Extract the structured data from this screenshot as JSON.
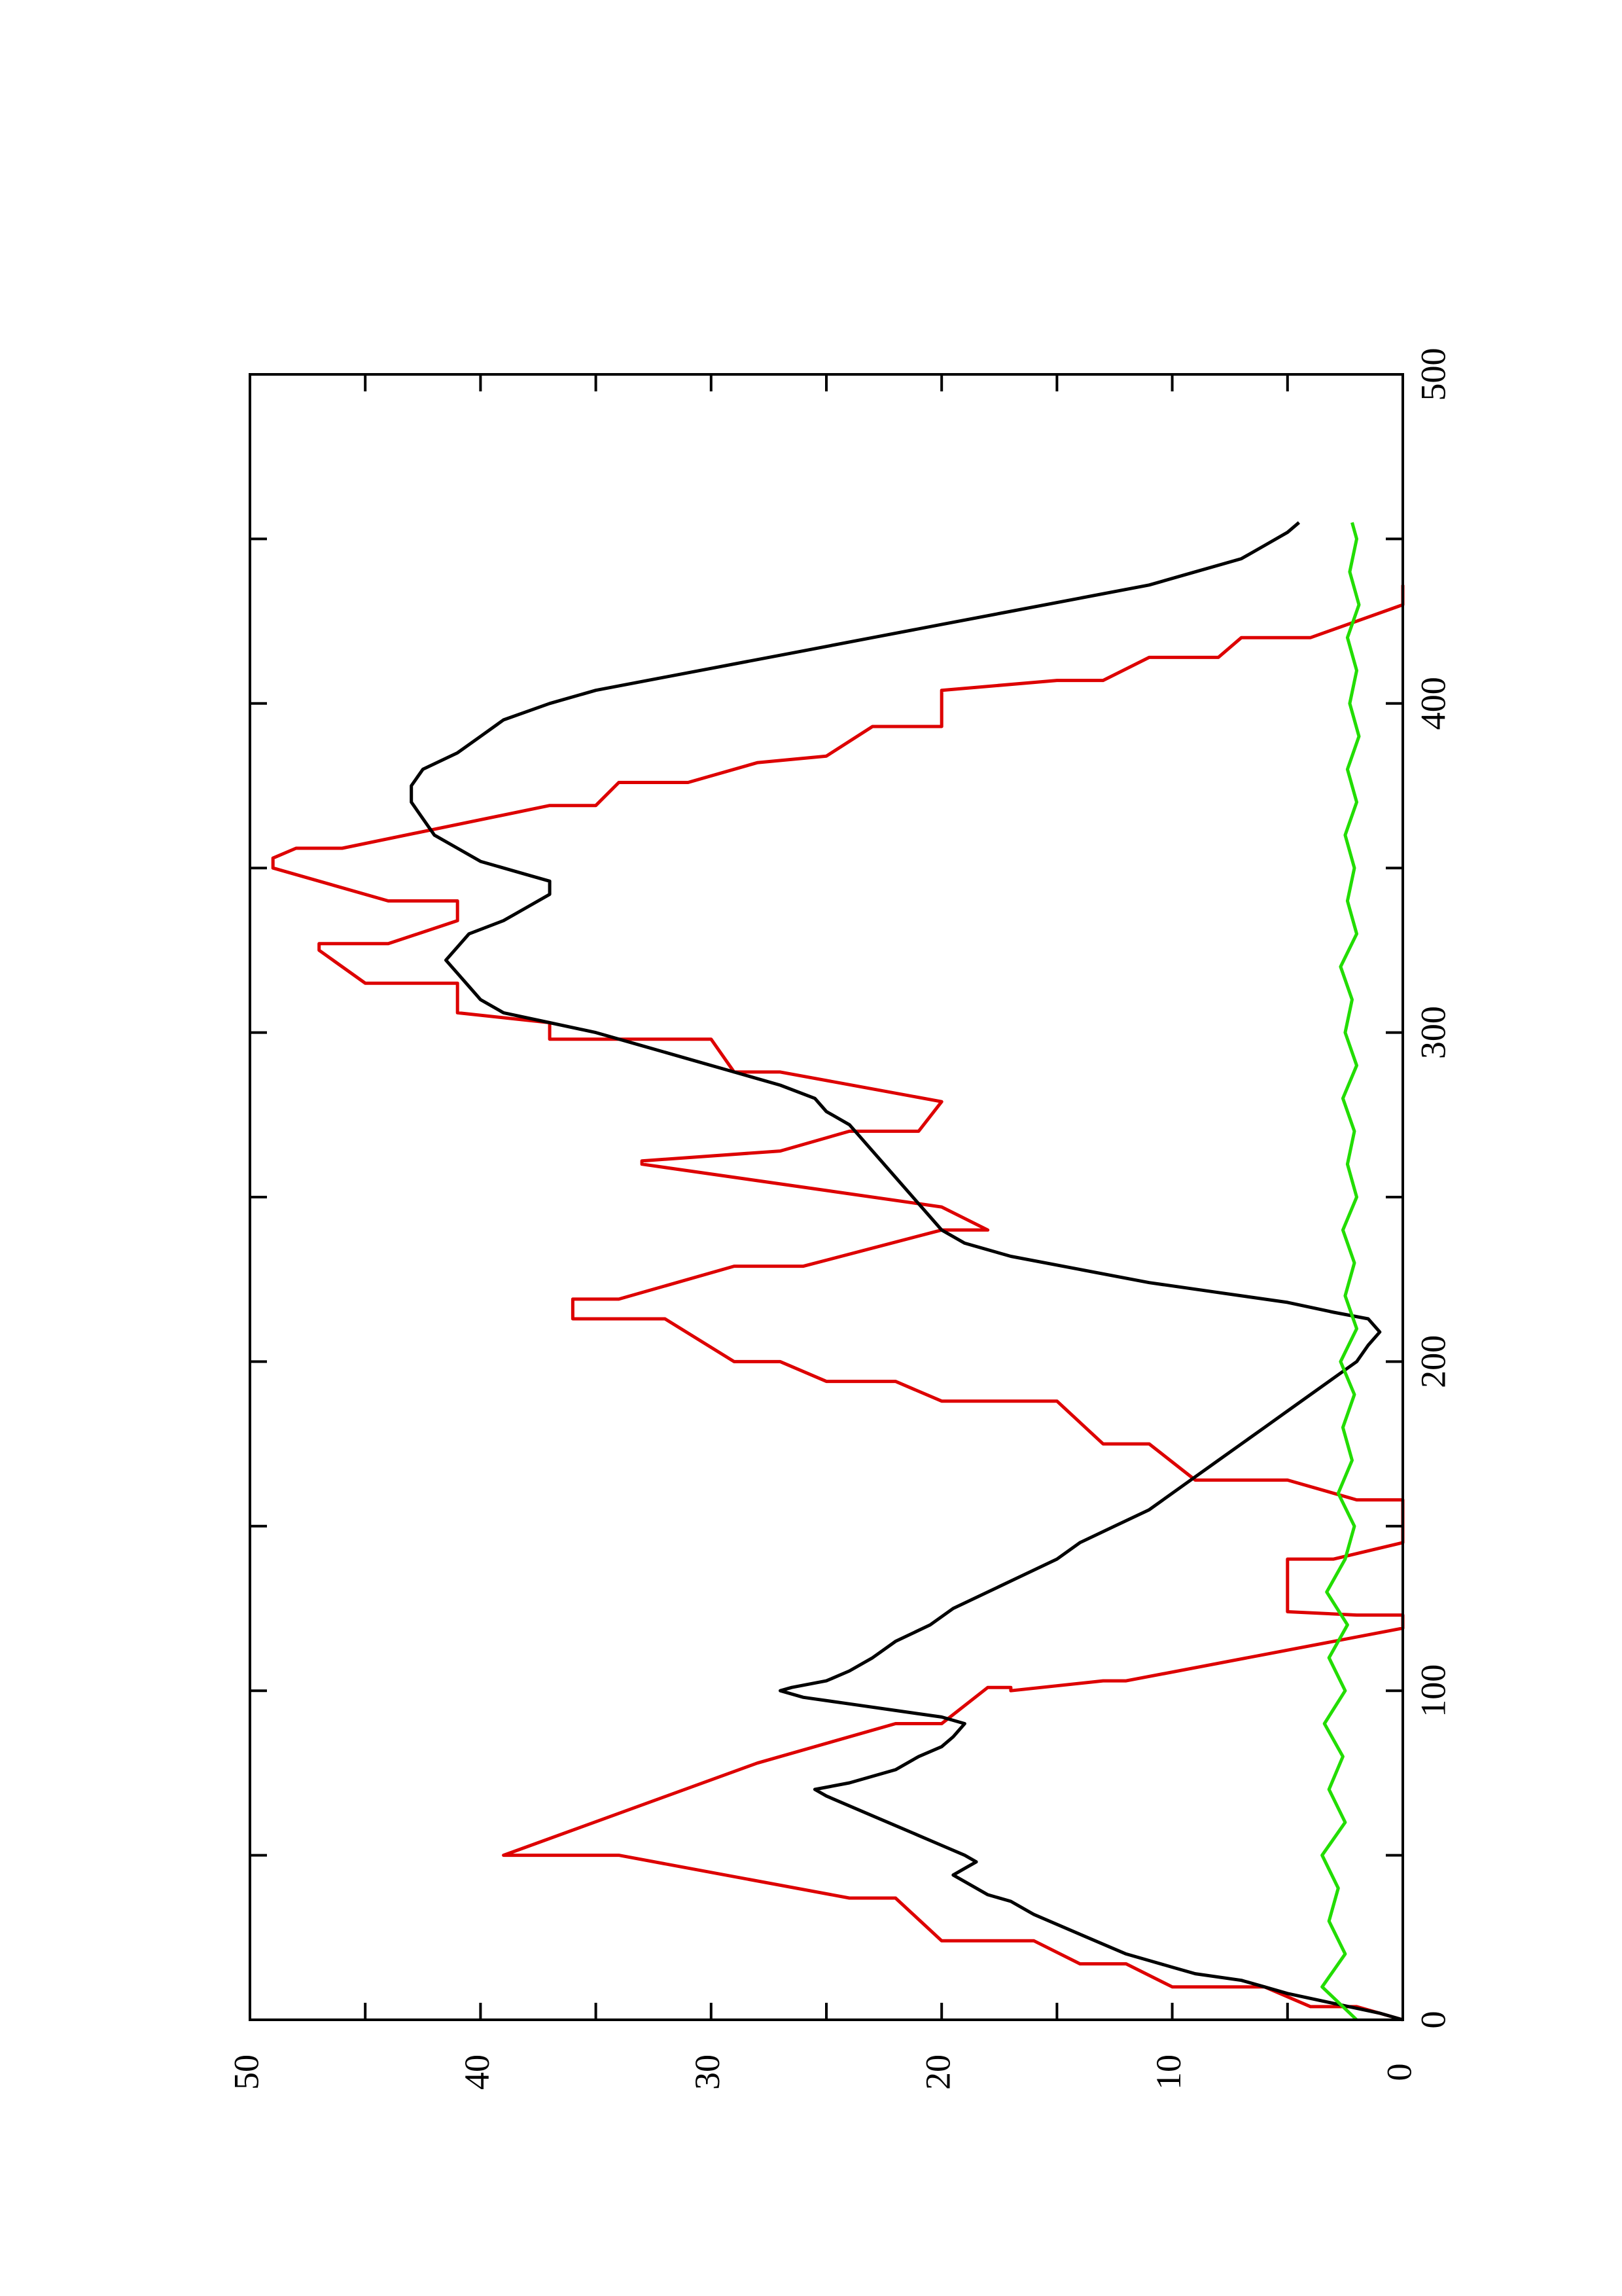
{
  "chart_data": {
    "type": "line",
    "orientation": "rotated-90-ccw",
    "title": "",
    "xlabel": "",
    "ylabel": "",
    "xlim": [
      0,
      500
    ],
    "ylim": [
      0,
      50
    ],
    "x_ticks": [
      0,
      100,
      200,
      300,
      400,
      500
    ],
    "y_ticks": [
      0,
      10,
      20,
      30,
      40,
      50
    ],
    "grid": false,
    "series": [
      {
        "color": "#dd0000",
        "style": "step",
        "points": [
          [
            0,
            0
          ],
          [
            4,
            2
          ],
          [
            4,
            4
          ],
          [
            10,
            6
          ],
          [
            10,
            10
          ],
          [
            17,
            12
          ],
          [
            17,
            14
          ],
          [
            24,
            16
          ],
          [
            24,
            20
          ],
          [
            37,
            22
          ],
          [
            37,
            24
          ],
          [
            50,
            34
          ],
          [
            50,
            39
          ],
          [
            78,
            28
          ],
          [
            78,
            28
          ],
          [
            90,
            22
          ],
          [
            90,
            20
          ],
          [
            101,
            18
          ],
          [
            101,
            17
          ],
          [
            100,
            17
          ],
          [
            103,
            13
          ],
          [
            103,
            12
          ],
          [
            119,
            0
          ],
          [
            123,
            0
          ],
          [
            123,
            2
          ],
          [
            124,
            5
          ],
          [
            140,
            5
          ],
          [
            140,
            3
          ],
          [
            145,
            0
          ],
          [
            158,
            0
          ],
          [
            158,
            2
          ],
          [
            164,
            5
          ],
          [
            164,
            9
          ],
          [
            175,
            11
          ],
          [
            175,
            13
          ],
          [
            188,
            15
          ],
          [
            188,
            20
          ],
          [
            194,
            22
          ],
          [
            194,
            25
          ],
          [
            200,
            27
          ],
          [
            200,
            29
          ],
          [
            213,
            32
          ],
          [
            213,
            36
          ],
          [
            219,
            36
          ],
          [
            219,
            34
          ],
          [
            229,
            29
          ],
          [
            229,
            26
          ],
          [
            240,
            20
          ],
          [
            240,
            18
          ],
          [
            247,
            20
          ],
          [
            260,
            33
          ],
          [
            261,
            33
          ],
          [
            264,
            27
          ],
          [
            270,
            24
          ],
          [
            270,
            21
          ],
          [
            279,
            20
          ],
          [
            288,
            27
          ],
          [
            288,
            29
          ],
          [
            298,
            30
          ],
          [
            298,
            37
          ],
          [
            303,
            37
          ],
          [
            306,
            41
          ],
          [
            315,
            41
          ],
          [
            315,
            45
          ],
          [
            325,
            47
          ],
          [
            327,
            47
          ],
          [
            327,
            44
          ],
          [
            334,
            41
          ],
          [
            340,
            41
          ],
          [
            340,
            44
          ],
          [
            350,
            49
          ],
          [
            353,
            49
          ],
          [
            356,
            48
          ],
          [
            356,
            46
          ],
          [
            369,
            37
          ],
          [
            369,
            35
          ],
          [
            376,
            34
          ],
          [
            376,
            31
          ],
          [
            382,
            28
          ],
          [
            384,
            25
          ],
          [
            393,
            23
          ],
          [
            393,
            20
          ],
          [
            404,
            20
          ],
          [
            407,
            15
          ],
          [
            407,
            13
          ],
          [
            414,
            11
          ],
          [
            414,
            8
          ],
          [
            420,
            7
          ],
          [
            420,
            4
          ],
          [
            430,
            0
          ],
          [
            436,
            0
          ]
        ]
      },
      {
        "color": "#000000",
        "style": "line",
        "points": [
          [
            0,
            0
          ],
          [
            2,
            1
          ],
          [
            5,
            3
          ],
          [
            8,
            5
          ],
          [
            10,
            6
          ],
          [
            12,
            7
          ],
          [
            14,
            9
          ],
          [
            16,
            10
          ],
          [
            18,
            11
          ],
          [
            20,
            12
          ],
          [
            23,
            13
          ],
          [
            26,
            14
          ],
          [
            29,
            15
          ],
          [
            32,
            16
          ],
          [
            36,
            17
          ],
          [
            38,
            18
          ],
          [
            42,
            19
          ],
          [
            44,
            19.5
          ],
          [
            46,
            19
          ],
          [
            48,
            18.5
          ],
          [
            50,
            19
          ],
          [
            53,
            20
          ],
          [
            56,
            21
          ],
          [
            59,
            22
          ],
          [
            62,
            23
          ],
          [
            65,
            24
          ],
          [
            68,
            25
          ],
          [
            70,
            25.5
          ],
          [
            72,
            24
          ],
          [
            76,
            22
          ],
          [
            80,
            21
          ],
          [
            83,
            20
          ],
          [
            86,
            19.5
          ],
          [
            90,
            19
          ],
          [
            92,
            20
          ],
          [
            94,
            22
          ],
          [
            96,
            24
          ],
          [
            98,
            26
          ],
          [
            100,
            27
          ],
          [
            101,
            26.5
          ],
          [
            103,
            25
          ],
          [
            106,
            24
          ],
          [
            110,
            23
          ],
          [
            115,
            22
          ],
          [
            120,
            20.5
          ],
          [
            125,
            19.5
          ],
          [
            130,
            18
          ],
          [
            135,
            16.5
          ],
          [
            140,
            15
          ],
          [
            145,
            14
          ],
          [
            150,
            12.5
          ],
          [
            155,
            11
          ],
          [
            160,
            10
          ],
          [
            165,
            9
          ],
          [
            170,
            8
          ],
          [
            175,
            7
          ],
          [
            180,
            6
          ],
          [
            185,
            5
          ],
          [
            190,
            4
          ],
          [
            195,
            3
          ],
          [
            200,
            2
          ],
          [
            205,
            1.5
          ],
          [
            209,
            1
          ],
          [
            213,
            1.5
          ],
          [
            215,
            3
          ],
          [
            218,
            5
          ],
          [
            221,
            8
          ],
          [
            224,
            11
          ],
          [
            228,
            14
          ],
          [
            232,
            17
          ],
          [
            236,
            19
          ],
          [
            240,
            20
          ],
          [
            244,
            20.5
          ],
          [
            248,
            21
          ],
          [
            252,
            21.5
          ],
          [
            256,
            22
          ],
          [
            260,
            22.5
          ],
          [
            264,
            23
          ],
          [
            268,
            23.5
          ],
          [
            272,
            24
          ],
          [
            276,
            25
          ],
          [
            280,
            25.5
          ],
          [
            284,
            27
          ],
          [
            288,
            29
          ],
          [
            292,
            31
          ],
          [
            296,
            33
          ],
          [
            300,
            35
          ],
          [
            303,
            37
          ],
          [
            306,
            39
          ],
          [
            310,
            40
          ],
          [
            314,
            40.5
          ],
          [
            318,
            41
          ],
          [
            322,
            41.5
          ],
          [
            326,
            41
          ],
          [
            330,
            40.5
          ],
          [
            334,
            39
          ],
          [
            338,
            38
          ],
          [
            342,
            37
          ],
          [
            346,
            37
          ],
          [
            348,
            38
          ],
          [
            350,
            39
          ],
          [
            352,
            40
          ],
          [
            356,
            41
          ],
          [
            360,
            42
          ],
          [
            365,
            42.5
          ],
          [
            370,
            43
          ],
          [
            375,
            43
          ],
          [
            380,
            42.5
          ],
          [
            385,
            41
          ],
          [
            390,
            40
          ],
          [
            395,
            39
          ],
          [
            400,
            37
          ],
          [
            404,
            35
          ],
          [
            408,
            32
          ],
          [
            412,
            29
          ],
          [
            416,
            26
          ],
          [
            420,
            23
          ],
          [
            424,
            20
          ],
          [
            428,
            17
          ],
          [
            432,
            14
          ],
          [
            436,
            11
          ],
          [
            440,
            9
          ],
          [
            444,
            7
          ],
          [
            448,
            6
          ],
          [
            452,
            5
          ],
          [
            455,
            4.5
          ]
        ]
      },
      {
        "color": "#22dd00",
        "style": "line",
        "points": [
          [
            0,
            2
          ],
          [
            10,
            3.5
          ],
          [
            20,
            2.5
          ],
          [
            30,
            3.2
          ],
          [
            40,
            2.8
          ],
          [
            50,
            3.5
          ],
          [
            60,
            2.5
          ],
          [
            70,
            3.2
          ],
          [
            80,
            2.6
          ],
          [
            90,
            3.4
          ],
          [
            100,
            2.5
          ],
          [
            110,
            3.2
          ],
          [
            120,
            2.4
          ],
          [
            130,
            3.3
          ],
          [
            140,
            2.5
          ],
          [
            150,
            2.1
          ],
          [
            160,
            2.8
          ],
          [
            170,
            2.2
          ],
          [
            180,
            2.6
          ],
          [
            190,
            2.1
          ],
          [
            200,
            2.7
          ],
          [
            210,
            2.0
          ],
          [
            220,
            2.5
          ],
          [
            230,
            2.1
          ],
          [
            240,
            2.6
          ],
          [
            250,
            2.0
          ],
          [
            260,
            2.4
          ],
          [
            270,
            2.1
          ],
          [
            280,
            2.6
          ],
          [
            290,
            2.0
          ],
          [
            300,
            2.5
          ],
          [
            310,
            2.2
          ],
          [
            320,
            2.7
          ],
          [
            330,
            2.0
          ],
          [
            340,
            2.4
          ],
          [
            350,
            2.1
          ],
          [
            360,
            2.5
          ],
          [
            370,
            2.0
          ],
          [
            380,
            2.4
          ],
          [
            390,
            1.9
          ],
          [
            400,
            2.3
          ],
          [
            410,
            2.0
          ],
          [
            420,
            2.4
          ],
          [
            430,
            1.9
          ],
          [
            440,
            2.3
          ],
          [
            450,
            2.0
          ],
          [
            455,
            2.2
          ]
        ]
      }
    ]
  }
}
